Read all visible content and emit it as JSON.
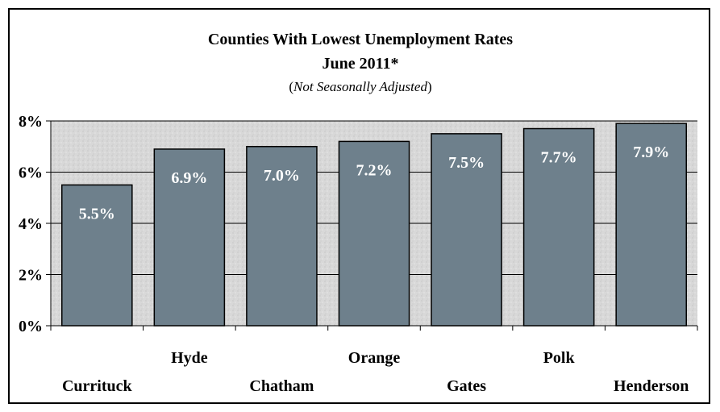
{
  "chart_data": {
    "type": "bar",
    "title": "Counties With Lowest Unemployment Rates",
    "title_line2": "June 2011*",
    "subtitle_italic": "Not Seasonally Adjusted",
    "subtitle_open": "(",
    "subtitle_close": ")",
    "categories": [
      "Currituck",
      "Hyde",
      "Chatham",
      "Orange",
      "Gates",
      "Polk",
      "Henderson"
    ],
    "values": [
      5.5,
      6.9,
      7.0,
      7.2,
      7.5,
      7.7,
      7.9
    ],
    "data_labels": [
      "5.5%",
      "6.9%",
      "7.0%",
      "7.2%",
      "7.5%",
      "7.7%",
      "7.9%"
    ],
    "ylim": [
      0,
      8
    ],
    "yticks": [
      0,
      2,
      4,
      6,
      8
    ],
    "ytick_labels": [
      "0%",
      "2%",
      "4%",
      "6%",
      "8%"
    ],
    "grid": true,
    "legend": "none",
    "colors": {
      "bar": "#6E808C",
      "bar_edge": "#000000",
      "plot_bg": "#DCDCDC",
      "data_label": "#FFFFFF"
    }
  }
}
